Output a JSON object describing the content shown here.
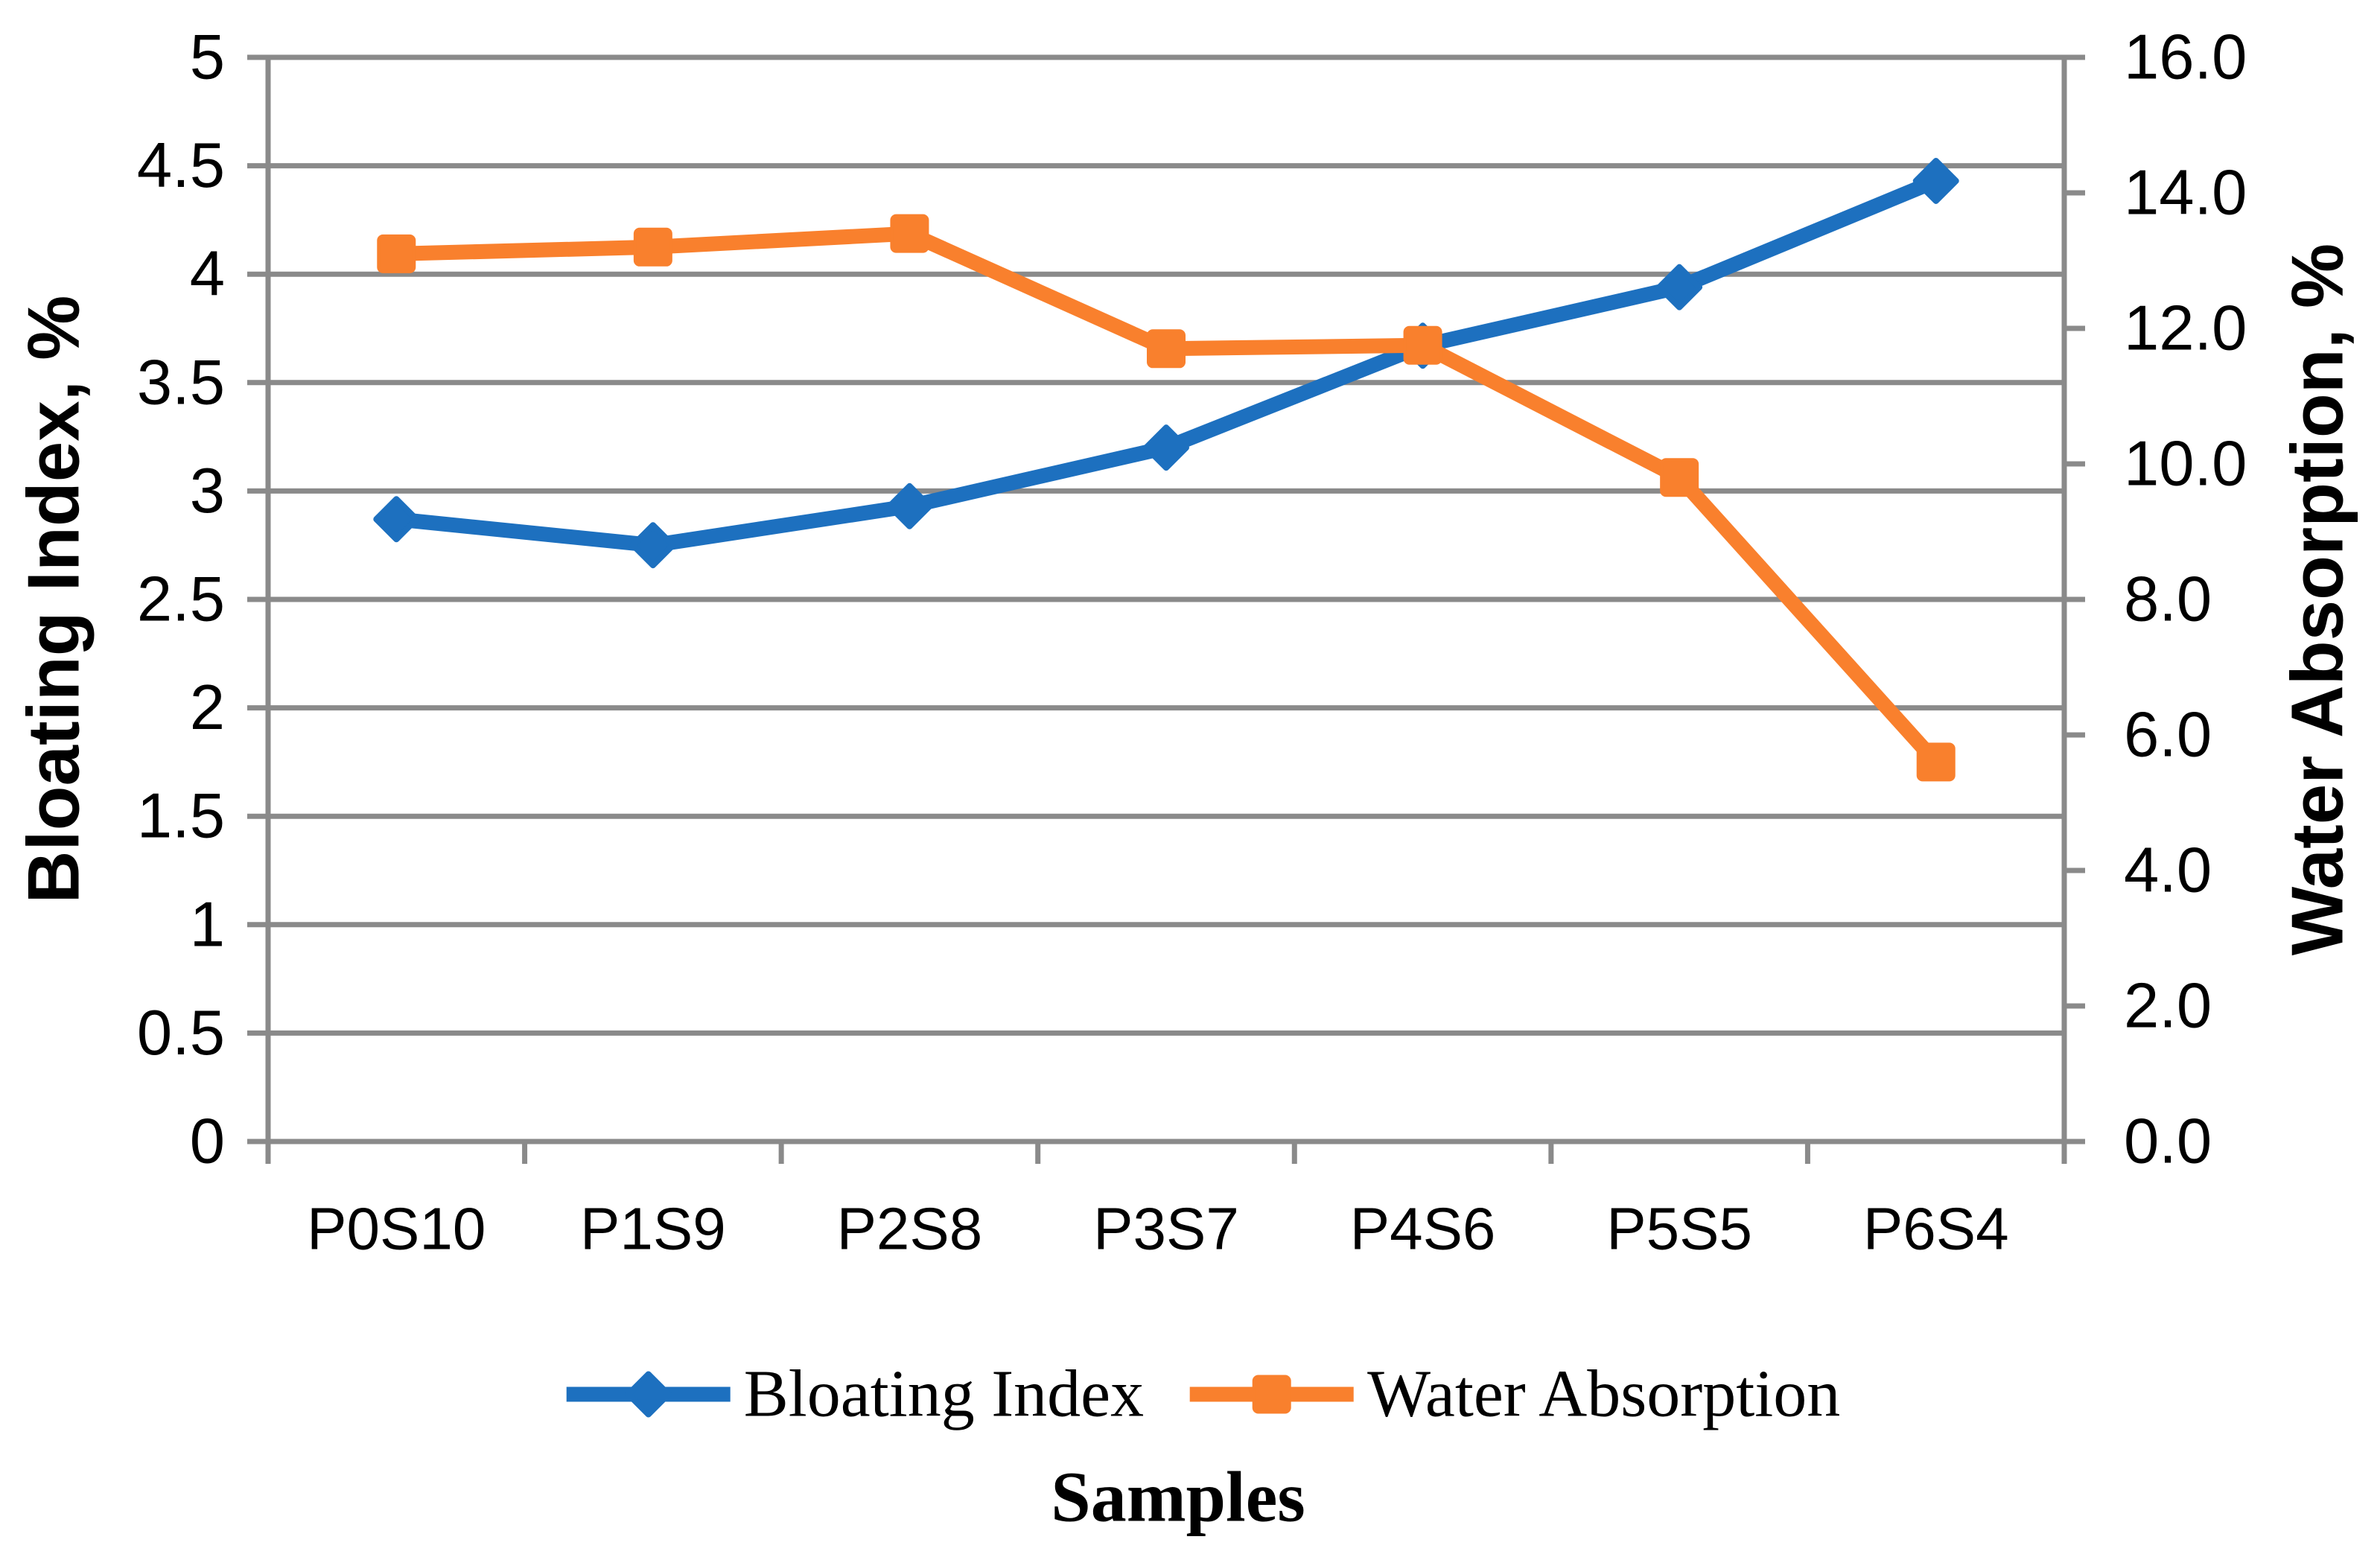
{
  "chart_data": {
    "type": "line",
    "categories": [
      "P0S10",
      "P1S9",
      "P2S8",
      "P3S7",
      "P4S6",
      "P5S5",
      "P6S4"
    ],
    "series": [
      {
        "name": "Bloating Index",
        "axis": "left",
        "marker": "diamond",
        "color": "#1D70BF",
        "values": [
          2.87,
          2.75,
          2.93,
          3.2,
          3.67,
          3.94,
          4.43
        ]
      },
      {
        "name": "Water Absorption",
        "axis": "right",
        "marker": "square",
        "color": "#F9802D",
        "values": [
          13.1,
          13.2,
          13.4,
          11.7,
          11.75,
          9.8,
          5.6
        ]
      }
    ],
    "left_axis": {
      "title": "Bloating Index, %",
      "min": 0,
      "max": 5,
      "step": 0.5,
      "tick_labels": [
        "0",
        "0.5",
        "1",
        "1.5",
        "2",
        "2.5",
        "3",
        "3.5",
        "4",
        "4.5",
        "5"
      ]
    },
    "right_axis": {
      "title": "Water Absorption, %",
      "min": 0,
      "max": 16,
      "step": 2,
      "tick_labels": [
        "0.0",
        "2.0",
        "4.0",
        "6.0",
        "8.0",
        "10.0",
        "12.0",
        "14.0",
        "16.0"
      ]
    },
    "xlabel": "Samples",
    "legend": {
      "position": "bottom"
    },
    "grid": {
      "horizontal": true,
      "vertical": false,
      "color": "#8A8A8A"
    },
    "text_color": "#000000"
  }
}
